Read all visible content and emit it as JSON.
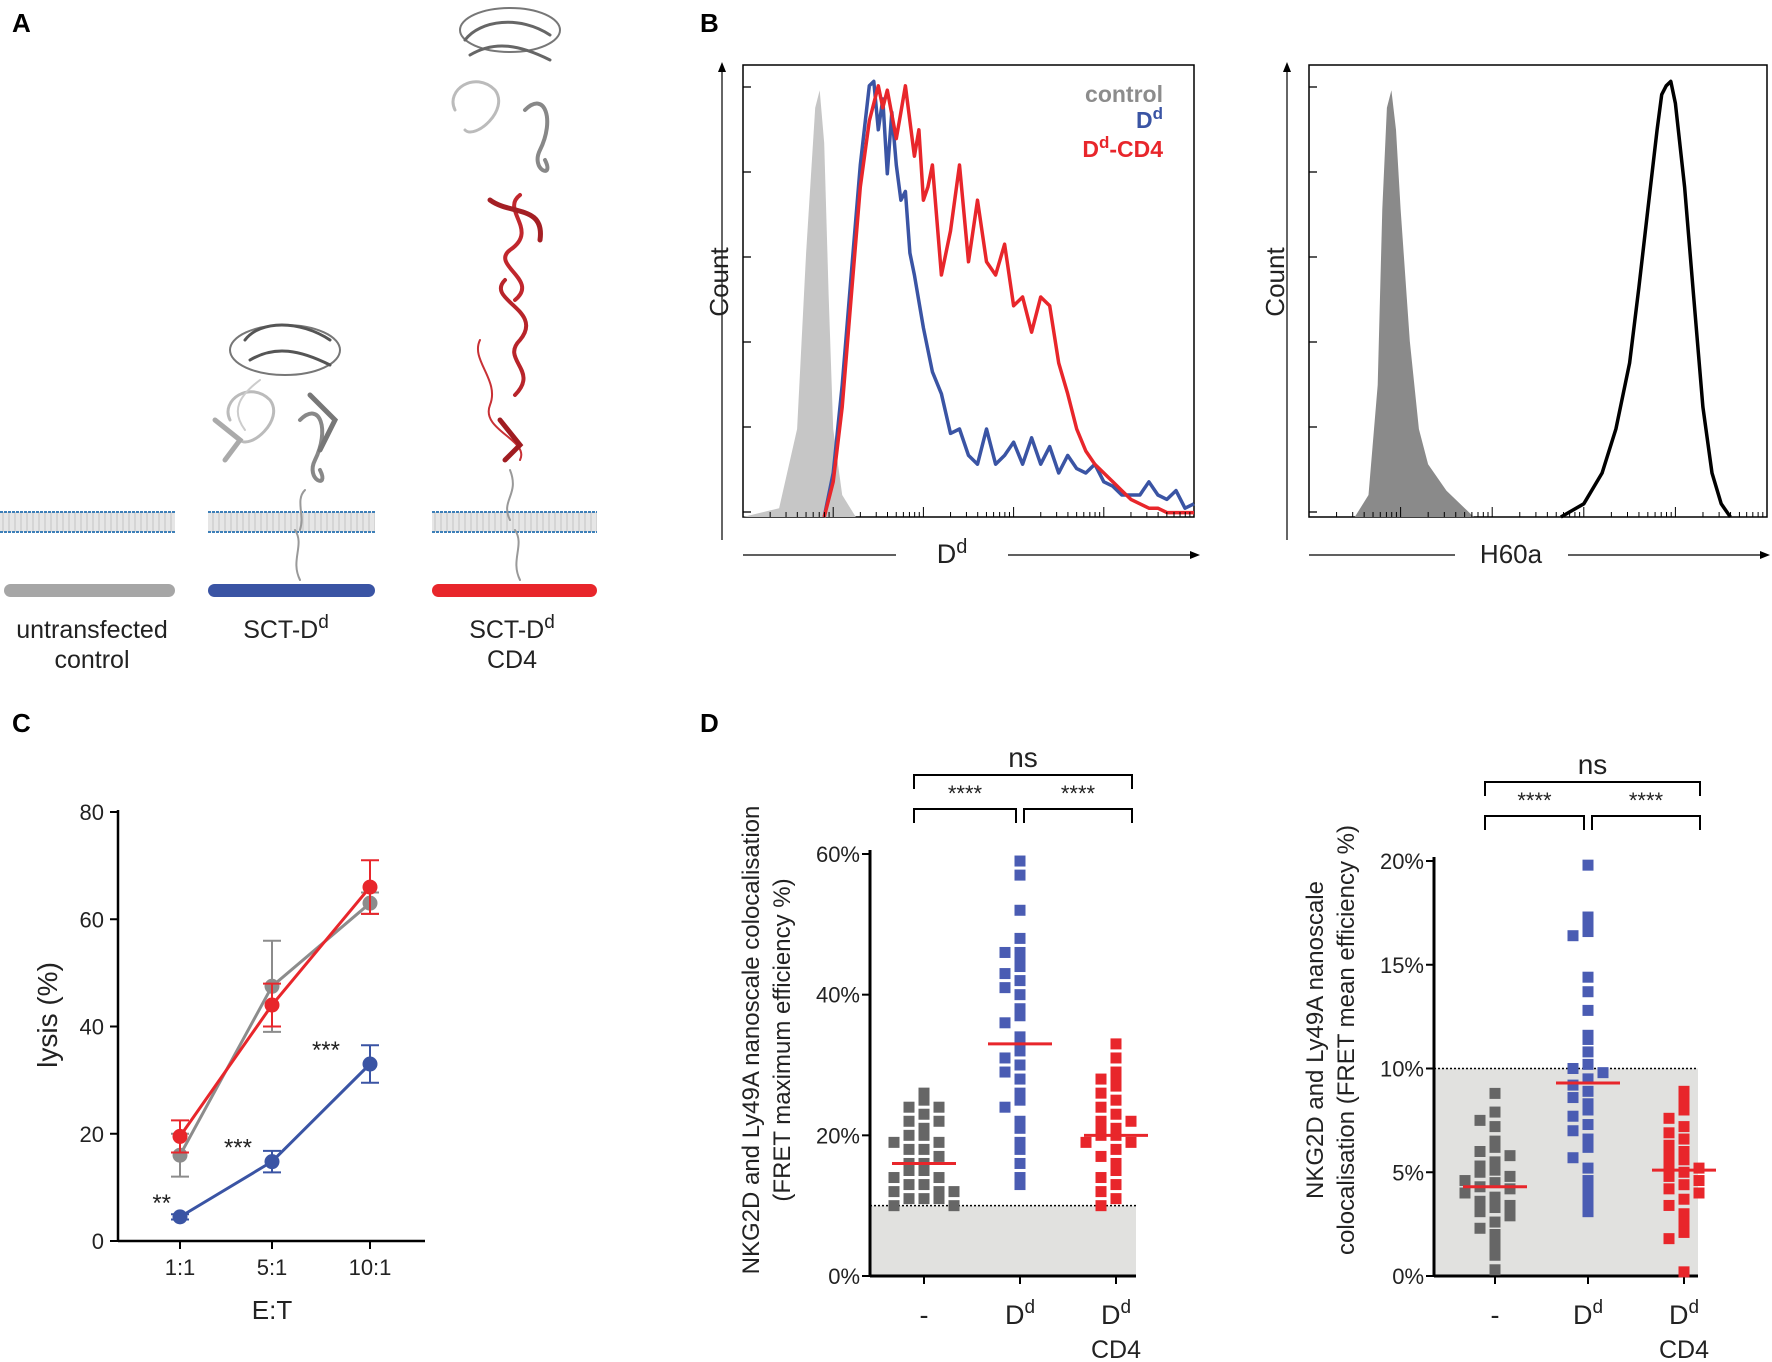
{
  "panels": {
    "A": "A",
    "B": "B",
    "C": "C",
    "D": "D"
  },
  "panel_a": {
    "constructs": [
      {
        "line1": "untransfected",
        "line2": "control",
        "bar_color": "#a6a6a6"
      },
      {
        "line1": "SCT-D",
        "sup": "d",
        "line2": "",
        "bar_color": "#3a54a4"
      },
      {
        "line1": "SCT-D",
        "sup": "d",
        "line2": "CD4",
        "bar_color": "#e8262b"
      }
    ]
  },
  "chart_data": [
    {
      "id": "B-left",
      "type": "histogram",
      "ylabel": "Count",
      "xlabel": "D",
      "xlabel_sup": "d",
      "legend": [
        {
          "label": "control",
          "color": "#8c8c8c"
        },
        {
          "label": "D",
          "sup": "d",
          "color": "#3a54a4"
        },
        {
          "label": "D",
          "sup": "d",
          "suffix": "-CD4",
          "color": "#e8262b"
        }
      ],
      "series": [
        {
          "name": "control",
          "style": "filled",
          "color": "#c6c6c6",
          "x": [
            0,
            0.08,
            0.12,
            0.14,
            0.16,
            0.17,
            0.18,
            0.19,
            0.2,
            0.22,
            0.25
          ],
          "y": [
            0,
            0.02,
            0.2,
            0.6,
            0.93,
            0.97,
            0.85,
            0.5,
            0.2,
            0.05,
            0
          ]
        },
        {
          "name": "Dd",
          "style": "line",
          "color": "#3a54a4",
          "x": [
            0.18,
            0.2,
            0.22,
            0.24,
            0.26,
            0.28,
            0.29,
            0.3,
            0.31,
            0.32,
            0.33,
            0.34,
            0.35,
            0.36,
            0.37,
            0.38,
            0.4,
            0.42,
            0.44,
            0.46,
            0.48,
            0.5,
            0.52,
            0.54,
            0.56,
            0.58,
            0.6,
            0.62,
            0.64,
            0.66,
            0.68,
            0.7,
            0.72,
            0.74,
            0.76,
            0.78,
            0.8,
            0.82,
            0.84,
            0.86,
            0.88,
            0.9,
            0.92,
            0.94,
            0.96,
            0.98,
            1.0
          ],
          "y": [
            0,
            0.1,
            0.3,
            0.55,
            0.8,
            0.98,
            0.99,
            0.88,
            0.95,
            0.78,
            0.92,
            0.8,
            0.72,
            0.74,
            0.6,
            0.55,
            0.43,
            0.33,
            0.28,
            0.19,
            0.2,
            0.14,
            0.12,
            0.2,
            0.12,
            0.14,
            0.17,
            0.12,
            0.18,
            0.12,
            0.16,
            0.1,
            0.14,
            0.11,
            0.1,
            0.12,
            0.08,
            0.07,
            0.05,
            0.05,
            0.05,
            0.08,
            0.05,
            0.04,
            0.06,
            0.02,
            0.03
          ]
        },
        {
          "name": "Dd-CD4",
          "style": "line",
          "color": "#e8262b",
          "x": [
            0.18,
            0.2,
            0.22,
            0.24,
            0.26,
            0.28,
            0.3,
            0.31,
            0.32,
            0.34,
            0.35,
            0.36,
            0.38,
            0.39,
            0.4,
            0.41,
            0.42,
            0.44,
            0.46,
            0.48,
            0.5,
            0.52,
            0.54,
            0.56,
            0.58,
            0.6,
            0.62,
            0.64,
            0.66,
            0.68,
            0.7,
            0.72,
            0.74,
            0.76,
            0.78,
            0.8,
            0.82,
            0.84,
            0.86,
            0.88,
            0.9,
            0.92,
            0.94,
            0.96,
            0.98,
            1.0
          ],
          "y": [
            0,
            0.08,
            0.25,
            0.5,
            0.75,
            0.9,
            0.98,
            0.93,
            0.97,
            0.86,
            0.92,
            0.98,
            0.82,
            0.88,
            0.72,
            0.75,
            0.8,
            0.55,
            0.65,
            0.8,
            0.58,
            0.72,
            0.58,
            0.55,
            0.62,
            0.48,
            0.5,
            0.42,
            0.5,
            0.48,
            0.35,
            0.28,
            0.2,
            0.15,
            0.12,
            0.1,
            0.08,
            0.06,
            0.04,
            0.03,
            0.02,
            0.02,
            0.01,
            0.01,
            0.01,
            0.01
          ]
        }
      ]
    },
    {
      "id": "B-right",
      "type": "histogram",
      "ylabel": "Count",
      "xlabel": "H60a",
      "series": [
        {
          "name": "control",
          "style": "filled",
          "color": "#8a8a8a",
          "x": [
            0.1,
            0.13,
            0.15,
            0.16,
            0.17,
            0.18,
            0.19,
            0.2,
            0.22,
            0.24,
            0.26,
            0.3,
            0.34,
            0.36
          ],
          "y": [
            0,
            0.05,
            0.3,
            0.7,
            0.93,
            0.97,
            0.88,
            0.7,
            0.4,
            0.2,
            0.12,
            0.06,
            0.02,
            0
          ],
          "comment": "shape only; no values shown"
        },
        {
          "name": "H60a",
          "style": "line",
          "color": "#000000",
          "x": [
            0.55,
            0.6,
            0.64,
            0.67,
            0.7,
            0.72,
            0.74,
            0.76,
            0.77,
            0.78,
            0.79,
            0.8,
            0.82,
            0.84,
            0.86,
            0.88,
            0.9,
            0.92
          ],
          "y": [
            0,
            0.03,
            0.1,
            0.2,
            0.35,
            0.52,
            0.7,
            0.88,
            0.96,
            0.98,
            0.99,
            0.94,
            0.75,
            0.5,
            0.25,
            0.1,
            0.03,
            0
          ]
        }
      ]
    },
    {
      "id": "C",
      "type": "line",
      "categories": [
        "1:1",
        "5:1",
        "10:1"
      ],
      "xlabel": "E:T",
      "ylabel": "lysis (%)",
      "ylim": [
        0,
        80
      ],
      "yticks": [
        0,
        20,
        40,
        60,
        80
      ],
      "series": [
        {
          "name": "control",
          "color": "#8c8c8c",
          "values": [
            16,
            47.5,
            63
          ],
          "err": [
            4,
            8.5,
            2
          ]
        },
        {
          "name": "Dd-CD4",
          "color": "#e8262b",
          "values": [
            19.5,
            44,
            66
          ],
          "err": [
            3,
            4,
            5
          ]
        },
        {
          "name": "Dd",
          "color": "#3a54a4",
          "values": [
            4.5,
            14.8,
            33
          ],
          "err": [
            0.5,
            2,
            3.5
          ]
        }
      ],
      "annotations": [
        "**",
        "***",
        "***"
      ]
    },
    {
      "id": "D-left",
      "type": "scatter",
      "ylabel_line1": "NKG2D and Ly49A nanoscale colocalisation",
      "ylabel_line2": "(FRET maximum efficiency %)",
      "ylim": [
        0,
        60
      ],
      "yticks": [
        "0%",
        "20%",
        "40%",
        "60%"
      ],
      "threshold": 10,
      "categories": [
        {
          "label": "-",
          "color": "#666666",
          "median": 16,
          "values": [
            26,
            25,
            24,
            24,
            23,
            22,
            22,
            21,
            20,
            20,
            19,
            19,
            18,
            18,
            17,
            16,
            16,
            15,
            15,
            14,
            14,
            13,
            13,
            12,
            12,
            12,
            11,
            11,
            11,
            10,
            10
          ]
        },
        {
          "label": "D",
          "sup": "d",
          "color": "#4a5cb3",
          "median": 33,
          "values": [
            59,
            57,
            52,
            48,
            46,
            46,
            45,
            44,
            43,
            42,
            41,
            40,
            38,
            37,
            36,
            34,
            33,
            32,
            31,
            30,
            29,
            28,
            26,
            25,
            24,
            22,
            21,
            19,
            18,
            16,
            14,
            13
          ]
        },
        {
          "label": "D",
          "sup": "d",
          "line2": "CD4",
          "color": "#e8262b",
          "median": 20,
          "values": [
            33,
            31,
            29,
            28,
            28,
            27,
            26,
            25,
            24,
            23,
            22,
            22,
            21,
            21,
            20,
            20,
            19,
            19,
            18,
            17,
            16,
            15,
            14,
            13,
            12,
            11,
            10
          ]
        }
      ],
      "brackets": {
        "outer": "ns",
        "left": "****",
        "right": "****"
      }
    },
    {
      "id": "D-right",
      "type": "scatter",
      "ylabel_line1": "NKG2D and Ly49A nanoscale",
      "ylabel_line2": "colocalisation (FRET mean efficiency %)",
      "ylim": [
        0,
        20
      ],
      "yticks": [
        "0%",
        "5%",
        "10%",
        "15%",
        "20%"
      ],
      "threshold": 10,
      "categories": [
        {
          "label": "-",
          "color": "#666666",
          "median": 4.3,
          "values": [
            8.8,
            7.9,
            7.5,
            7.2,
            6.5,
            6.2,
            6.0,
            5.8,
            5.5,
            5.3,
            5.1,
            5.0,
            4.8,
            4.6,
            4.5,
            4.3,
            4.2,
            4.0,
            3.8,
            3.6,
            3.4,
            3.3,
            3.1,
            2.9,
            2.6,
            2.3,
            2.0,
            1.5,
            1.0,
            0.3
          ]
        },
        {
          "label": "D",
          "sup": "d",
          "color": "#4a5cb3",
          "median": 9.3,
          "values": [
            19.8,
            17.3,
            17.0,
            16.6,
            16.4,
            14.4,
            13.7,
            12.8,
            11.6,
            11.4,
            10.8,
            10.2,
            10.0,
            9.8,
            9.5,
            9.2,
            8.9,
            8.6,
            8.3,
            8.0,
            7.7,
            7.3,
            7.0,
            6.6,
            6.2,
            5.7,
            5.2,
            4.6,
            4.1,
            3.6,
            3.1
          ]
        },
        {
          "label": "D",
          "sup": "d",
          "line2": "CD4",
          "color": "#e8262b",
          "median": 5.1,
          "values": [
            8.9,
            8.5,
            8.0,
            7.6,
            7.2,
            6.9,
            6.6,
            6.3,
            6.0,
            5.8,
            5.6,
            5.4,
            5.2,
            5.0,
            4.8,
            4.6,
            4.4,
            4.2,
            4.0,
            3.7,
            3.4,
            3.0,
            2.6,
            2.1,
            1.8,
            0.2
          ]
        }
      ],
      "brackets": {
        "outer": "ns",
        "left": "****",
        "right": "****"
      }
    }
  ]
}
